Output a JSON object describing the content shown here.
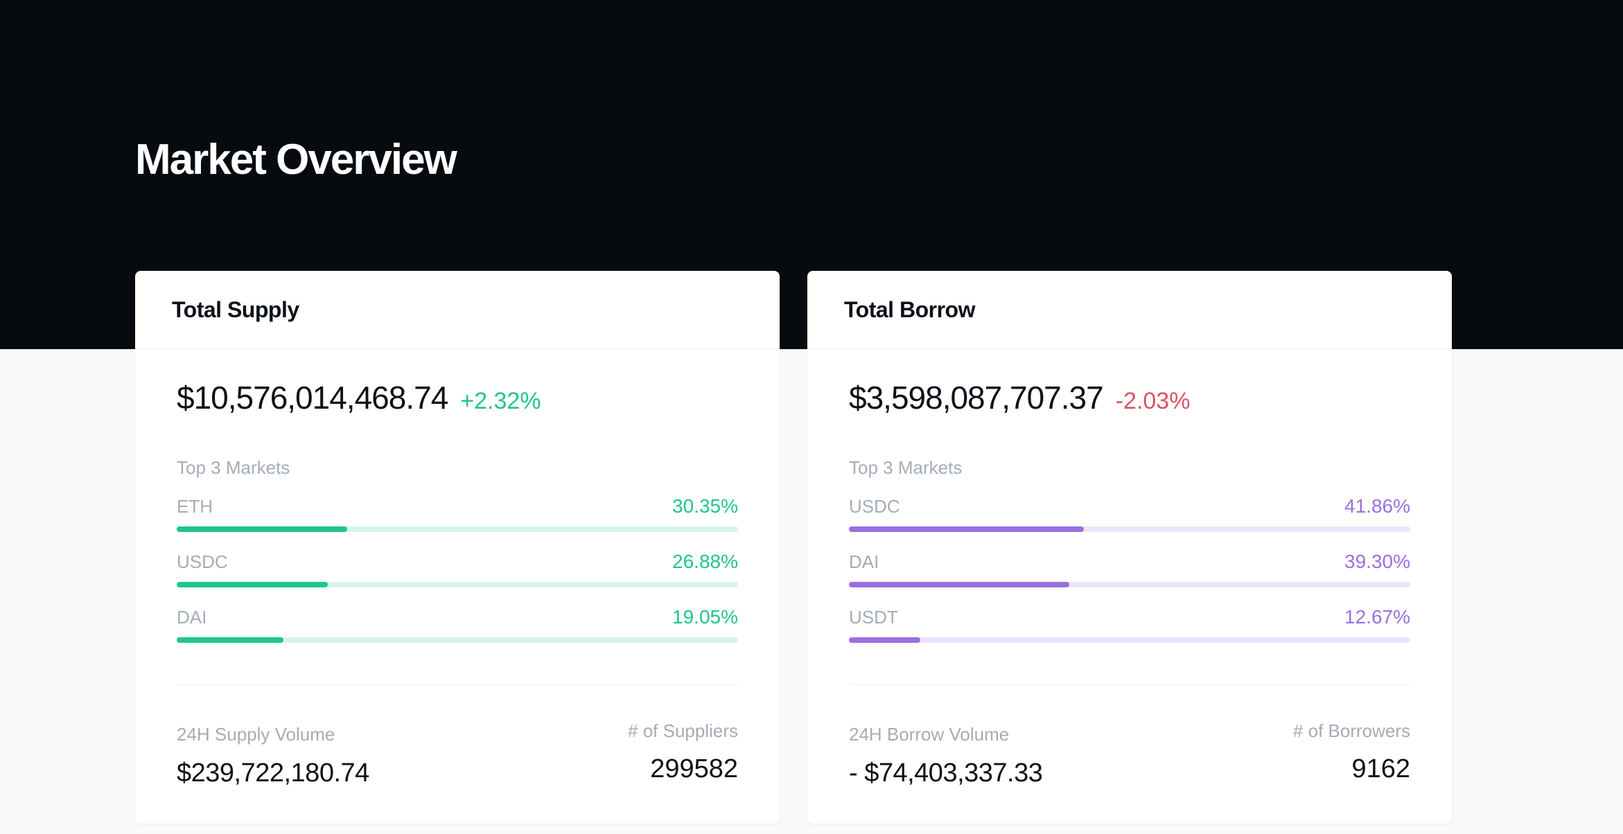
{
  "page": {
    "title": "Market Overview"
  },
  "colors": {
    "hero_background": "#070a0e",
    "page_background": "#f8f9fb",
    "supply_accent": "#20c48f",
    "supply_track": "#d6f4ea",
    "borrow_accent": "#9a6fe0",
    "borrow_track": "#ece4fa",
    "positive_change": "#20c48f",
    "negative_change": "#d9545f"
  },
  "supply": {
    "title": "Total Supply",
    "total": "$10,576,014,468.74",
    "change": "+2.32%",
    "top_markets_label": "Top 3 Markets",
    "markets": [
      {
        "name": "ETH",
        "percent": "30.35%",
        "fraction": 0.3035
      },
      {
        "name": "USDC",
        "percent": "26.88%",
        "fraction": 0.2688
      },
      {
        "name": "DAI",
        "percent": "19.05%",
        "fraction": 0.1905
      }
    ],
    "volume_label": "24H Supply Volume",
    "volume_value": "$239,722,180.74",
    "count_label": "# of Suppliers",
    "count_value": "299582"
  },
  "borrow": {
    "title": "Total Borrow",
    "total": "$3,598,087,707.37",
    "change": "-2.03%",
    "top_markets_label": "Top 3 Markets",
    "markets": [
      {
        "name": "USDC",
        "percent": "41.86%",
        "fraction": 0.4186
      },
      {
        "name": "DAI",
        "percent": "39.30%",
        "fraction": 0.393
      },
      {
        "name": "USDT",
        "percent": "12.67%",
        "fraction": 0.1267
      }
    ],
    "volume_label": "24H Borrow Volume",
    "volume_value": "- $74,403,337.33",
    "count_label": "# of Borrowers",
    "count_value": "9162"
  }
}
